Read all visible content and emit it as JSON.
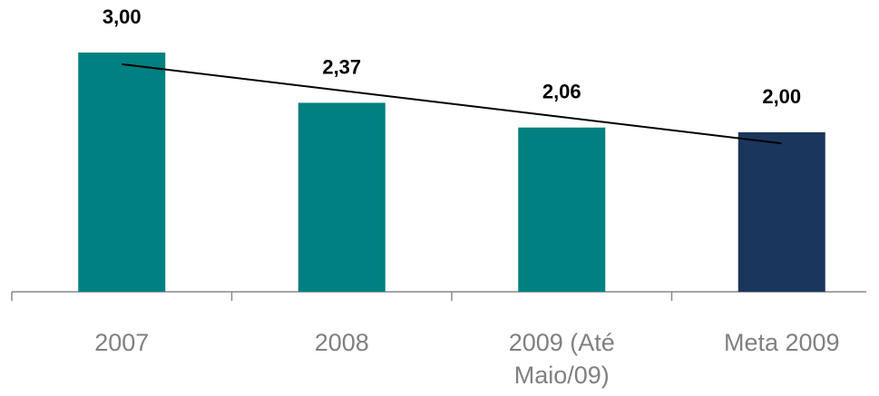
{
  "chart_data": {
    "type": "bar",
    "categories": [
      "2007",
      "2008",
      "2009 (Até Maio/09)",
      "Meta 2009"
    ],
    "values": [
      3.0,
      2.37,
      2.06,
      2.0
    ],
    "value_labels": [
      "3,00",
      "2,37",
      "2,06",
      "2,00"
    ],
    "colors": [
      "#008080",
      "#008080",
      "#008080",
      "#1b365d"
    ],
    "ylim": [
      0,
      3.6
    ],
    "trendline": true,
    "trendline_color": "#000000"
  }
}
